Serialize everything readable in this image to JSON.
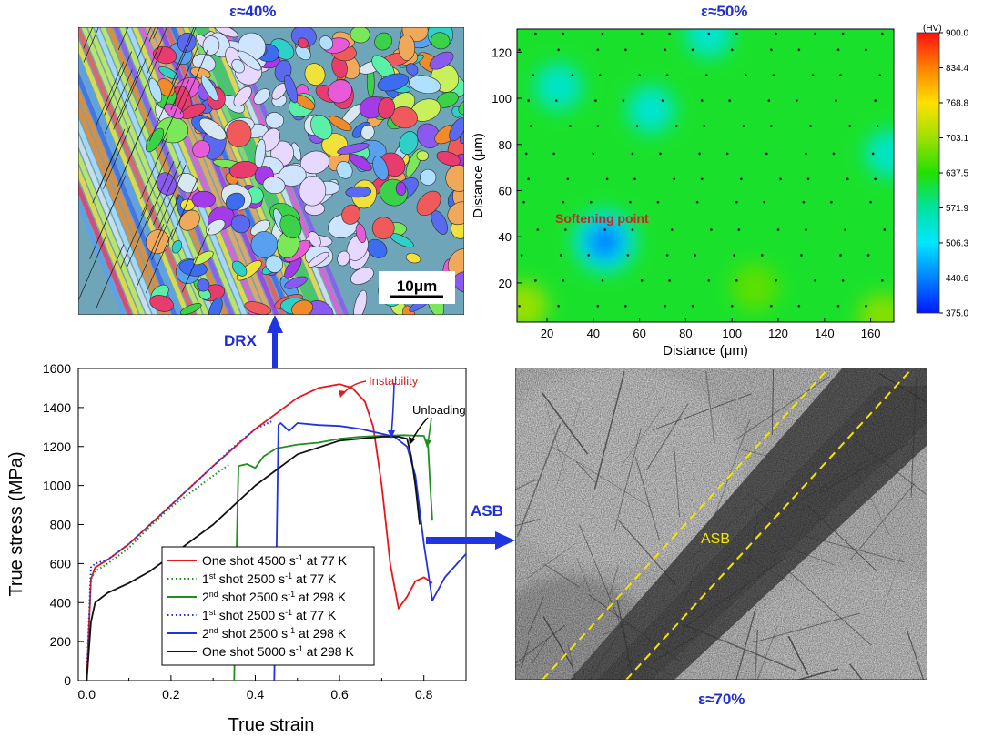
{
  "labels": {
    "top_left_strain": "ε≈40%",
    "top_right_strain": "ε≈50%",
    "bottom_right_strain": "ε≈70%",
    "drx": "DRX",
    "asb_arrow": "ASB",
    "asb_in_image": "ASB",
    "scale_bar": "10μm",
    "softening_point": "Softening point",
    "instability": "Instability",
    "unloading": "Unloading"
  },
  "colors": {
    "accent_blue": "#1f2fd0",
    "annotation_red": "#d42020",
    "asb_dash": "#f2e600"
  },
  "chart_data": [
    {
      "type": "line",
      "xlabel": "True strain",
      "ylabel": "True stress (MPa)",
      "xlim": [
        -0.02,
        0.9
      ],
      "ylim": [
        0,
        1600
      ],
      "xticks": [
        "0.0",
        "0.2",
        "0.4",
        "0.6",
        "0.8"
      ],
      "xtick_values": [
        0,
        0.2,
        0.4,
        0.6,
        0.8
      ],
      "yticks": [
        "0",
        "200",
        "400",
        "600",
        "800",
        "1000",
        "1200",
        "1400",
        "1600"
      ],
      "ytick_values": [
        0,
        200,
        400,
        600,
        800,
        1000,
        1200,
        1400,
        1600
      ],
      "legend_placement": "bottom-center",
      "series": [
        {
          "legend": [
            "One shot 4500 s",
            "-1",
            " at 77 K"
          ],
          "color": "#e8161b",
          "dash": "solid",
          "x": [
            0.0,
            0.01,
            0.02,
            0.05,
            0.1,
            0.2,
            0.3,
            0.4,
            0.5,
            0.55,
            0.6,
            0.63,
            0.66,
            0.68,
            0.7,
            0.72,
            0.74,
            0.76,
            0.78,
            0.8,
            0.82
          ],
          "y": [
            0,
            520,
            580,
            620,
            700,
            900,
            1100,
            1290,
            1450,
            1500,
            1520,
            1500,
            1430,
            1300,
            1000,
            600,
            370,
            430,
            510,
            530,
            500
          ]
        },
        {
          "legend": [
            "1",
            "st",
            " shot 2500 s",
            "-1",
            " at 77 K"
          ],
          "color": "#1f8f1f",
          "dash": "dotted",
          "x": [
            0.0,
            0.01,
            0.02,
            0.05,
            0.1,
            0.15,
            0.2,
            0.25,
            0.3,
            0.34
          ],
          "y": [
            0,
            520,
            560,
            600,
            680,
            790,
            890,
            970,
            1050,
            1110
          ]
        },
        {
          "legend": [
            "2",
            "nd",
            " shot 2500 s",
            "-1",
            " at 298 K"
          ],
          "color": "#1f8f1f",
          "dash": "solid",
          "x": [
            0.35,
            0.355,
            0.36,
            0.38,
            0.4,
            0.42,
            0.45,
            0.5,
            0.55,
            0.6,
            0.65,
            0.7,
            0.75,
            0.8,
            0.81,
            0.815,
            0.82
          ],
          "y": [
            0,
            600,
            1100,
            1110,
            1090,
            1150,
            1190,
            1210,
            1220,
            1240,
            1250,
            1255,
            1258,
            1255,
            1200,
            1000,
            820
          ]
        },
        {
          "legend": [
            "1",
            "st",
            " shot 2500 s",
            "-1",
            " at 77 K"
          ],
          "color": "#2233dd",
          "dash": "dotted",
          "x": [
            0.0,
            0.01,
            0.02,
            0.05,
            0.1,
            0.2,
            0.3,
            0.35,
            0.4,
            0.44
          ],
          "y": [
            0,
            580,
            600,
            620,
            700,
            900,
            1100,
            1200,
            1290,
            1330
          ]
        },
        {
          "legend": [
            "2",
            "nd",
            " shot 2500 s",
            "-1",
            " at 298 K"
          ],
          "color": "#2233dd",
          "dash": "solid",
          "x": [
            0.445,
            0.45,
            0.455,
            0.46,
            0.48,
            0.5,
            0.55,
            0.6,
            0.65,
            0.7,
            0.73,
            0.76,
            0.78,
            0.8,
            0.82,
            0.85,
            0.9
          ],
          "y": [
            0,
            600,
            1310,
            1320,
            1280,
            1320,
            1310,
            1305,
            1290,
            1265,
            1250,
            1200,
            1050,
            700,
            410,
            530,
            650
          ]
        },
        {
          "legend": [
            "One shot 5000 s",
            "-1",
            " at 298 K"
          ],
          "color": "#111111",
          "dash": "solid",
          "x": [
            0.0,
            0.01,
            0.02,
            0.05,
            0.1,
            0.15,
            0.2,
            0.3,
            0.4,
            0.5,
            0.6,
            0.7,
            0.74,
            0.76,
            0.77,
            0.78,
            0.79
          ],
          "y": [
            0,
            300,
            400,
            450,
            500,
            560,
            640,
            800,
            1000,
            1160,
            1230,
            1250,
            1250,
            1240,
            1150,
            1000,
            800
          ]
        }
      ]
    },
    {
      "type": "heatmap",
      "xlabel": "Distance (μm)",
      "ylabel": "Distance (μm)",
      "xlim": [
        7,
        170
      ],
      "ylim": [
        3,
        130
      ],
      "xticks": [
        "20",
        "40",
        "60",
        "80",
        "100",
        "120",
        "140",
        "160"
      ],
      "xtick_values": [
        20,
        40,
        60,
        80,
        100,
        120,
        140,
        160
      ],
      "yticks": [
        "20",
        "40",
        "60",
        "80",
        "100",
        "120"
      ],
      "ytick_values": [
        20,
        40,
        60,
        80,
        100,
        120
      ],
      "colorbar_unit": "(HV)",
      "colorbar_ticks": [
        "900.0",
        "834.4",
        "768.8",
        "703.1",
        "637.5",
        "571.9",
        "506.3",
        "440.6",
        "375.0"
      ],
      "colorbar_values": [
        900.0,
        834.4,
        768.8,
        703.1,
        637.5,
        571.9,
        506.3,
        440.6,
        375.0
      ],
      "background_value": 620,
      "features": [
        {
          "x": 45,
          "y": 38,
          "value": 440
        },
        {
          "x": 25,
          "y": 105,
          "value": 545
        },
        {
          "x": 65,
          "y": 95,
          "value": 540
        },
        {
          "x": 90,
          "y": 128,
          "value": 540
        },
        {
          "x": 168,
          "y": 76,
          "value": 545
        },
        {
          "x": 10,
          "y": 10,
          "value": 700
        },
        {
          "x": 165,
          "y": 5,
          "value": 690
        },
        {
          "x": 110,
          "y": 18,
          "value": 668
        }
      ]
    }
  ]
}
